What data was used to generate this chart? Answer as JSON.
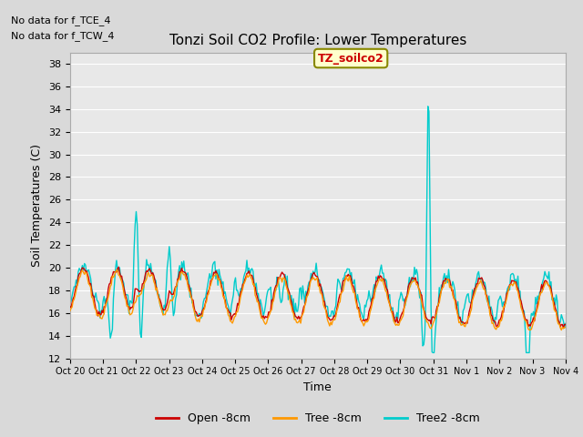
{
  "title": "Tonzi Soil CO2 Profile: Lower Temperatures",
  "xlabel": "Time",
  "ylabel": "Soil Temperatures (C)",
  "ylim": [
    12,
    39
  ],
  "yticks": [
    12,
    14,
    16,
    18,
    20,
    22,
    24,
    26,
    28,
    30,
    32,
    34,
    36,
    38
  ],
  "background_color": "#d9d9d9",
  "plot_bg_color": "#e8e8e8",
  "line_colors": {
    "open": "#cc0000",
    "tree": "#ff9900",
    "tree2": "#00cccc"
  },
  "line_widths": {
    "open": 1.0,
    "tree": 1.0,
    "tree2": 1.0
  },
  "legend_labels": [
    "Open -8cm",
    "Tree -8cm",
    "Tree2 -8cm"
  ],
  "annotations": [
    "No data for f_TCE_4",
    "No data for f_TCW_4"
  ],
  "data_label": "TZ_soilco2",
  "xtick_labels": [
    "Oct 20",
    "Oct 21",
    "Oct 22",
    "Oct 23",
    "Oct 24",
    "Oct 25",
    "Oct 26",
    "Oct 27",
    "Oct 28",
    "Oct 29",
    "Oct 30",
    "Oct 31",
    "Nov 1",
    "Nov 2",
    "Nov 3",
    "Nov 4"
  ],
  "grid_color": "#ffffff",
  "n_points": 480
}
